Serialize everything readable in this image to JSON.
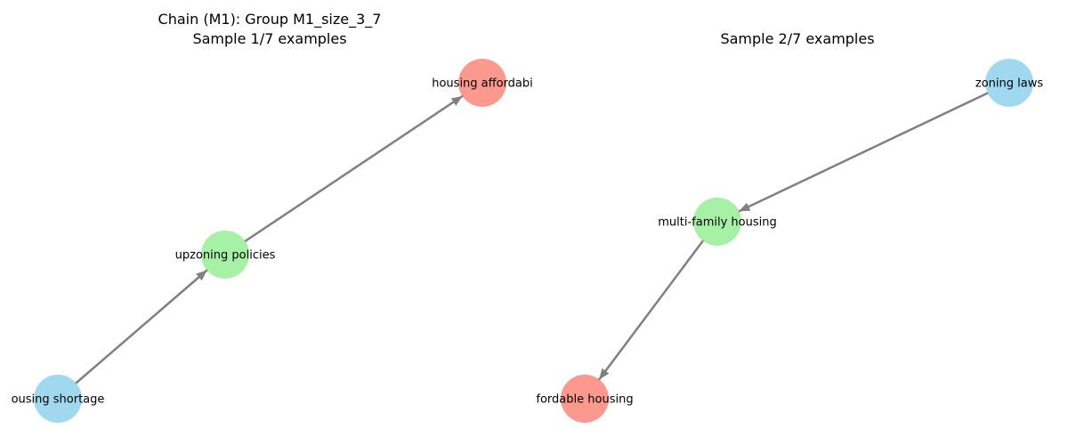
{
  "panels": [
    {
      "title_lines": [
        "Chain (M1): Group M1_size_3_7",
        "Sample 1/7 examples"
      ],
      "nodes": [
        {
          "id": "a",
          "label": "housing affordabi",
          "color": "#fa8072"
        },
        {
          "id": "b",
          "label": "upzoning policies",
          "color": "#90ee90"
        },
        {
          "id": "c",
          "label": "ousing shortage",
          "color": "#87ceeb"
        }
      ],
      "edges": [
        {
          "from": "c",
          "to": "b"
        },
        {
          "from": "b",
          "to": "a"
        }
      ]
    },
    {
      "title_lines": [
        "Sample 2/7 examples"
      ],
      "nodes": [
        {
          "id": "a",
          "label": "zoning laws",
          "color": "#87ceeb"
        },
        {
          "id": "b",
          "label": "multi-family housing",
          "color": "#90ee90"
        },
        {
          "id": "c",
          "label": "fordable housing",
          "color": "#fa8072"
        }
      ],
      "edges": [
        {
          "from": "a",
          "to": "b"
        },
        {
          "from": "b",
          "to": "c"
        }
      ]
    }
  ],
  "edge_color": "#808080"
}
